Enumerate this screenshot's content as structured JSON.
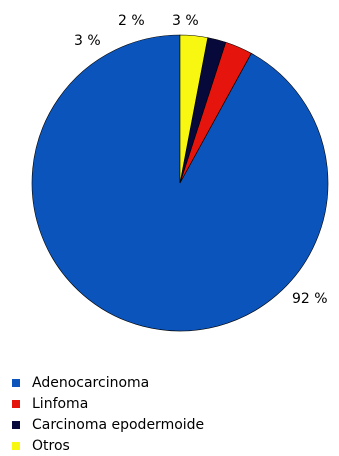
{
  "chart_data": {
    "type": "pie",
    "start": "top",
    "direction": "counterclockwise",
    "legend_position": "bottom-left",
    "slices": [
      {
        "label": "Adenocarcinoma",
        "value": 92,
        "value_label": "92 %",
        "color": "#0b54bb"
      },
      {
        "label": "Linfoma",
        "value": 3,
        "value_label": "3 %",
        "color": "#e5140c"
      },
      {
        "label": "Carcinoma epodermoide",
        "value": 2,
        "value_label": "2 %",
        "color": "#07093a"
      },
      {
        "label": "Otros",
        "value": 3,
        "value_label": "3 %",
        "color": "#f7f712"
      }
    ]
  }
}
